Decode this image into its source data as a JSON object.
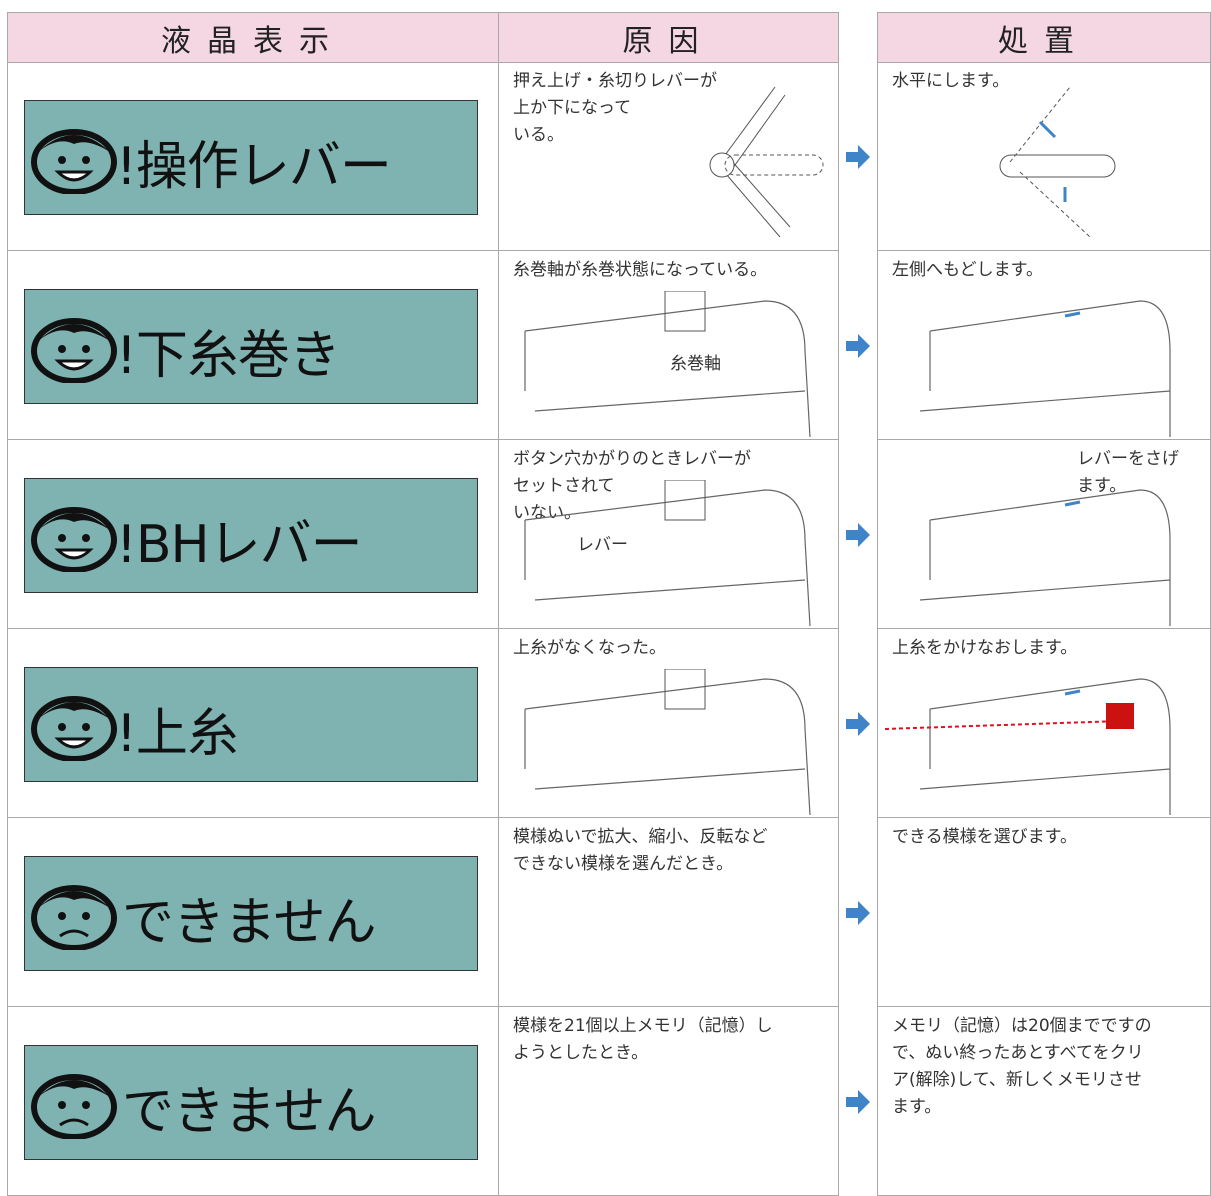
{
  "header": {
    "display": "液晶表示",
    "cause": "原因",
    "remedy": "処置"
  },
  "rows": [
    {
      "display": "!操作レバー",
      "cause": [
        "押え上げ・糸切りレバーが",
        "上か下になって",
        "いる。"
      ],
      "remedy": [
        "水平にします。"
      ]
    },
    {
      "display": "!下糸巻き",
      "cause": [
        "糸巻軸が糸巻状態になっている。"
      ],
      "cause_label": "糸巻軸",
      "remedy": [
        "左側へもどします。"
      ]
    },
    {
      "display": "!BHレバー",
      "cause": [
        "ボタン穴かがりのときレバーが",
        "セットされて",
        "いない。"
      ],
      "cause_label": "レバー",
      "remedy": [
        "レバーをさげ",
        "ます。"
      ]
    },
    {
      "display": "!上糸",
      "cause": [
        "上糸がなくなった。"
      ],
      "remedy": [
        "上糸をかけなおします。"
      ]
    },
    {
      "display": "できません",
      "cause": [
        "模様ぬいで拡大、縮小、反転など",
        "できない模様を選んだとき。"
      ],
      "remedy": [
        "できる模様を選びます。"
      ]
    },
    {
      "display": "できません",
      "cause": [
        "模様を21個以上メモリ（記憶）し",
        "ようとしたとき。"
      ],
      "remedy": [
        "メモリ（記憶）は20個までですの",
        "で、ぬい終ったあとすべてをクリ",
        "ア(解除)して、新しくメモリさせ",
        "ます。"
      ]
    }
  ]
}
